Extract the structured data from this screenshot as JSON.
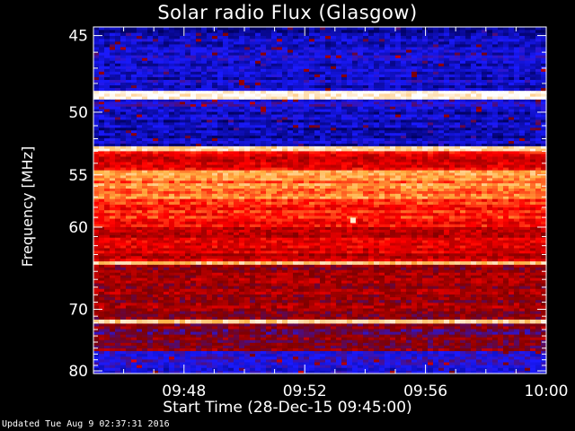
{
  "chart_data": {
    "type": "heatmap",
    "title": "Solar radio Flux (Glasgow)",
    "ylabel": "Frequency [MHz]",
    "xlabel": "Start Time (28-Dec-15 09:45:00)",
    "x_ticks": [
      "09:48",
      "09:52",
      "09:56",
      "10:00"
    ],
    "x_tick_minutes": [
      48,
      52,
      56,
      60
    ],
    "x_range_minutes": [
      45,
      60
    ],
    "y_ticks": [
      45,
      50,
      55,
      60,
      70,
      80
    ],
    "y_range": [
      44.5,
      80.5
    ],
    "y_scale": "reciprocal",
    "colormap": [
      "#000060",
      "#1a1aff",
      "#800000",
      "#ff0000",
      "#ffb040",
      "#ffffff"
    ],
    "bands": [
      {
        "from": 44.5,
        "to": 45.2,
        "level": 0.05
      },
      {
        "from": 45.2,
        "to": 48.5,
        "level": 0.15
      },
      {
        "from": 48.5,
        "to": 49.1,
        "level": 0.95
      },
      {
        "from": 49.1,
        "to": 49.6,
        "level": 0.2
      },
      {
        "from": 49.6,
        "to": 52.6,
        "level": 0.12
      },
      {
        "from": 52.6,
        "to": 53.0,
        "level": 0.9
      },
      {
        "from": 53.0,
        "to": 54.6,
        "level": 0.55
      },
      {
        "from": 54.6,
        "to": 57.2,
        "level": 0.75
      },
      {
        "from": 57.2,
        "to": 60.0,
        "level": 0.62
      },
      {
        "from": 60.0,
        "to": 63.8,
        "level": 0.52
      },
      {
        "from": 63.8,
        "to": 64.2,
        "level": 0.8
      },
      {
        "from": 64.2,
        "to": 66.5,
        "level": 0.45
      },
      {
        "from": 66.5,
        "to": 71.5,
        "level": 0.42
      },
      {
        "from": 71.5,
        "to": 72.1,
        "level": 0.85
      },
      {
        "from": 72.1,
        "to": 76.5,
        "level": 0.38
      },
      {
        "from": 76.5,
        "to": 80.5,
        "level": 0.2
      }
    ],
    "burst": {
      "time_minutes": 53.6,
      "freq": 59.3,
      "level": 0.95
    }
  },
  "footer": {
    "updated": "Updated Tue Aug  9 02:37:31 2016"
  }
}
